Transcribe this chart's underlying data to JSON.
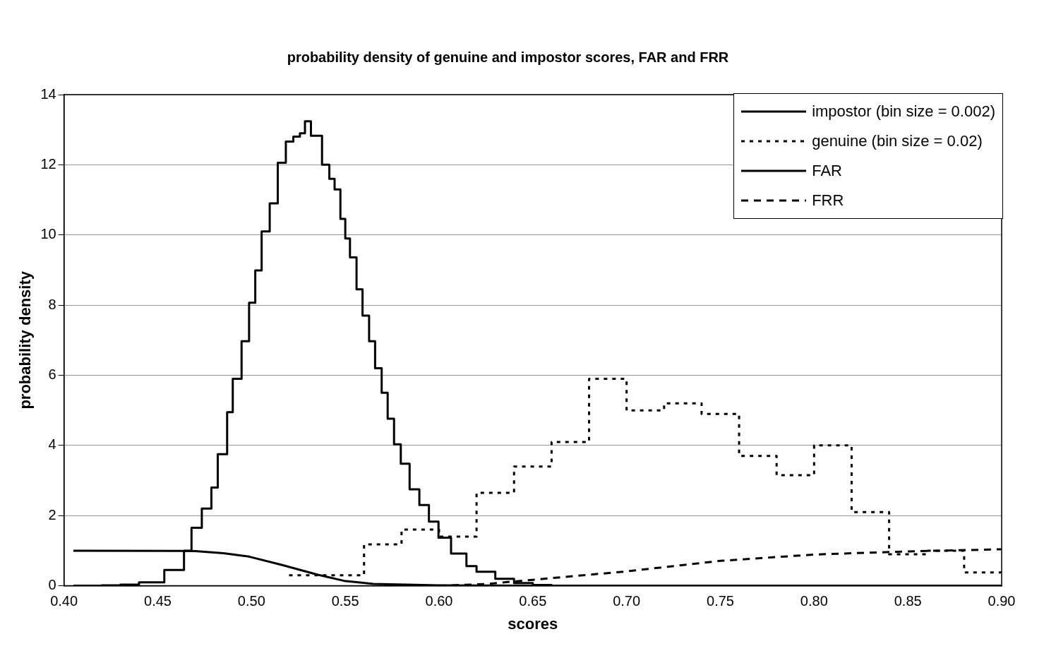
{
  "chart_data": {
    "type": "line",
    "title": "probability density of genuine and impostor scores, FAR and FRR",
    "xlabel": "scores",
    "ylabel": "probability density",
    "xlim": [
      0.4,
      0.9
    ],
    "xticks": [
      {
        "value": 0.4,
        "label": "0.40"
      },
      {
        "value": 0.45,
        "label": "0.45"
      },
      {
        "value": 0.5,
        "label": "0.50"
      },
      {
        "value": 0.55,
        "label": "0.55"
      },
      {
        "value": 0.6,
        "label": "0.60"
      },
      {
        "value": 0.65,
        "label": "0.65"
      },
      {
        "value": 0.7,
        "label": "0.70"
      },
      {
        "value": 0.75,
        "label": "0.75"
      },
      {
        "value": 0.8,
        "label": "0.80"
      },
      {
        "value": 0.85,
        "label": "0.85"
      },
      {
        "value": 0.9,
        "label": "0.90"
      }
    ],
    "ylim": [
      0,
      14
    ],
    "yticks": [
      0,
      2,
      4,
      6,
      8,
      10,
      12,
      14
    ],
    "grid": "y",
    "legend": "top right",
    "marker": "none",
    "series": [
      {
        "name": "impostor (bin size = 0.002)",
        "type": "step",
        "color": "#000000",
        "line_style": "solid",
        "x": [
          0.405,
          0.42,
          0.43,
          0.44,
          0.4535,
          0.464,
          0.468,
          0.4735,
          0.4786,
          0.482,
          0.487,
          0.49,
          0.4947,
          0.4987,
          0.502,
          0.5054,
          0.5097,
          0.514,
          0.5183,
          0.5223,
          0.5258,
          0.5285,
          0.5317,
          0.5348,
          0.5376,
          0.5415,
          0.5443,
          0.5474,
          0.55,
          0.5525,
          0.556,
          0.5592,
          0.5627,
          0.5659,
          0.5694,
          0.5726,
          0.576,
          0.5796,
          0.5843,
          0.5895,
          0.5946,
          0.5997,
          0.6064,
          0.6146,
          0.62,
          0.63,
          0.64,
          0.65,
          0.66,
          0.9
        ],
        "values": [
          0,
          0.01,
          0.03,
          0.1,
          0.45,
          1.0,
          1.65,
          2.2,
          2.8,
          3.75,
          4.95,
          5.9,
          6.97,
          8.07,
          8.99,
          10.1,
          10.9,
          12.06,
          12.66,
          12.8,
          12.9,
          13.24,
          12.83,
          12.83,
          12.0,
          11.6,
          11.3,
          10.46,
          9.9,
          9.36,
          8.45,
          7.7,
          6.97,
          6.2,
          5.5,
          4.76,
          4.03,
          3.48,
          2.75,
          2.3,
          1.83,
          1.37,
          0.92,
          0.56,
          0.4,
          0.2,
          0.08,
          0.02,
          0,
          0
        ]
      },
      {
        "name": "genuine (bin size = 0.02)",
        "type": "step",
        "color": "#000000",
        "line_style": "dotted",
        "x": [
          0.52,
          0.54,
          0.56,
          0.58,
          0.6,
          0.62,
          0.64,
          0.66,
          0.68,
          0.7,
          0.72,
          0.74,
          0.76,
          0.78,
          0.8,
          0.82,
          0.84,
          0.86,
          0.88,
          0.9
        ],
        "values": [
          0.3,
          0.3,
          1.18,
          1.6,
          1.4,
          2.65,
          3.4,
          4.1,
          5.9,
          5.0,
          5.2,
          4.9,
          3.7,
          3.15,
          4.0,
          2.1,
          0.9,
          1.0,
          0.38,
          0.38
        ]
      },
      {
        "name": "FAR",
        "color": "#000000",
        "line_style": "solid",
        "x": [
          0.405,
          0.47,
          0.485,
          0.4987,
          0.5157,
          0.535,
          0.5494,
          0.565,
          0.6,
          0.65,
          0.7,
          0.9
        ],
        "values": [
          1.0,
          0.99,
          0.93,
          0.83,
          0.6,
          0.32,
          0.14,
          0.05,
          0.01,
          0,
          0,
          0
        ]
      },
      {
        "name": "FRR",
        "color": "#000000",
        "line_style": "dashed",
        "x": [
          0.6,
          0.625,
          0.65,
          0.7,
          0.75,
          0.8,
          0.85,
          0.9
        ],
        "values": [
          0,
          0.05,
          0.17,
          0.41,
          0.71,
          0.89,
          0.98,
          1.04
        ]
      }
    ]
  }
}
